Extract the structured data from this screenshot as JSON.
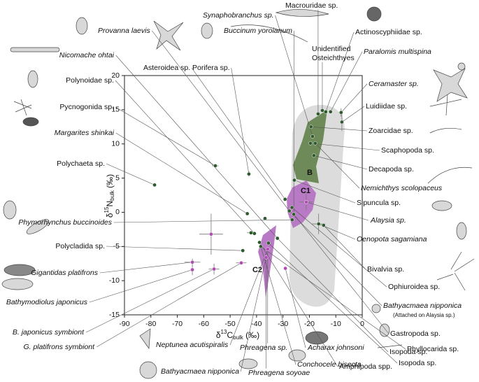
{
  "chart_data": {
    "type": "scatter",
    "x_label": [
      "δ",
      "13",
      "C",
      "bulk",
      " (‰)"
    ],
    "y_label": [
      "δ",
      "15",
      "N",
      "bulk",
      " (‰)"
    ],
    "xlim": [
      -90,
      0
    ],
    "xticks": [
      -90,
      -80,
      -70,
      -60,
      -50,
      -40,
      -30,
      -20,
      -10,
      0
    ],
    "ylim": [
      -15,
      20
    ],
    "yticks": [
      -15,
      -10,
      -5,
      0,
      5,
      10,
      15,
      20
    ],
    "series": [
      {
        "color": "#2e5a2e",
        "x": [
          -78.6,
          -55.6,
          -42.9,
          -43.5,
          -36.8,
          -42.1,
          -40.8,
          -32.1,
          -38.9,
          -38.4,
          -45.2,
          -25.7,
          -29.2,
          -27.6,
          -26.5,
          -16.5,
          -14.6,
          -16.7,
          -15.1,
          -13.8,
          -12.0,
          -8.0,
          -7.7,
          -19.4,
          -18.8,
          -19.6,
          -17.8,
          -18.3,
          -26.6,
          -25.9,
          -35.5
        ],
        "y": [
          4.0,
          6.8,
          5.6,
          -0.2,
          -0.9,
          -3.0,
          -3.1,
          -3.8,
          -4.4,
          -5.0,
          -5.6,
          4.7,
          1.9,
          0.2,
          -1.1,
          -1.7,
          -1.9,
          14.4,
          14.9,
          14.7,
          14.7,
          14.6,
          13.2,
          12.5,
          11.1,
          10.1,
          10.1,
          8.3,
          0.7,
          -0.3,
          -4.5
        ],
        "xerr": [
          null,
          1.2,
          null,
          null,
          null,
          1.5,
          null,
          null,
          null,
          null,
          null,
          null,
          null,
          null,
          null,
          2.5,
          null,
          null,
          null,
          null,
          null,
          0.8,
          null,
          null,
          null,
          null,
          null,
          null,
          null,
          null,
          null
        ],
        "yerr": [
          null,
          0.3,
          0.4,
          null,
          null,
          null,
          null,
          null,
          null,
          null,
          null,
          null,
          null,
          null,
          null,
          1.5,
          null,
          null,
          null,
          null,
          null,
          0.6,
          1.3,
          null,
          null,
          null,
          null,
          null,
          null,
          null,
          null
        ]
      },
      {
        "color": "#b04bb4",
        "x": [
          -21.2,
          -57.2,
          -64.3,
          -64.3,
          -56.1,
          -45.8,
          -35.8,
          -36.4,
          -29.1
        ],
        "y": [
          1.5,
          -3.2,
          -7.3,
          -8.4,
          -8.3,
          -7.4,
          -5.4,
          -6.6,
          -8.2
        ],
        "xerr": [
          2.5,
          4.5,
          3,
          null,
          2,
          2,
          null,
          null,
          null
        ],
        "yerr": [
          1.2,
          3,
          0.5,
          0.8,
          0.8,
          null,
          null,
          null,
          null
        ]
      }
    ],
    "annotations": [
      "B",
      "C1",
      "C2"
    ],
    "labels": [
      {
        "text": "Nicomache ohtai",
        "italic": true
      },
      {
        "text": "Polynoidae sp.",
        "italic": false
      },
      {
        "text": "Pycnogonida sp.",
        "italic": false
      },
      {
        "text": "Margarites shinkai",
        "italic": true
      },
      {
        "text": "Polychaeta sp.",
        "italic": false
      },
      {
        "text": "Phymorhynchus buccinoides",
        "italic": true
      },
      {
        "text": "Polycladida sp.",
        "italic": false
      },
      {
        "text": "Gigantidas platifrons",
        "italic": true
      },
      {
        "text": "Bathymodiolus japonicus",
        "italic": true
      },
      {
        "text": "B. japonicus symbiont",
        "italic": true
      },
      {
        "text": "G. platifrons symbiont",
        "italic": true
      },
      {
        "text": "Provanna laevis",
        "italic": true
      },
      {
        "text": "Asteroidea sp.",
        "italic": false
      },
      {
        "text": "Synaphobranchus sp.",
        "italic": true
      },
      {
        "text": "Buccinum yoroianum",
        "italic": true
      },
      {
        "text": "Porifera sp.",
        "italic": false
      },
      {
        "text": "Macrouridae sp.",
        "italic": false
      },
      {
        "text": "Unidentified",
        "italic": false
      },
      {
        "text": "Osteichthyes",
        "italic": false
      },
      {
        "text": "Actinoscyphiidae sp.",
        "italic": false
      },
      {
        "text": "Paralomis multispina",
        "italic": true
      },
      {
        "text": "Ceramaster sp.",
        "italic": true
      },
      {
        "text": "Luidiidae sp.",
        "italic": false
      },
      {
        "text": "Zoarcidae sp.",
        "italic": false
      },
      {
        "text": "Scaphopoda sp.",
        "italic": false
      },
      {
        "text": "Decapoda sp.",
        "italic": false
      },
      {
        "text": "Nemichthys scolopaceus",
        "italic": true
      },
      {
        "text": "Sipuncula sp.",
        "italic": false
      },
      {
        "text": "Alaysia sp.",
        "italic": true
      },
      {
        "text": "Oenopota sagamiana",
        "italic": true
      },
      {
        "text": "Bivalvia sp.",
        "italic": false
      },
      {
        "text": "Ophiuroidea sp.",
        "italic": false
      },
      {
        "text": "Bathyacmaea nipponica",
        "italic": true
      },
      {
        "text": "(Attached on Alaysia sp.)",
        "italic": false
      },
      {
        "text": "Gastropoda sp.",
        "italic": false
      },
      {
        "text": "Phyllocarida sp.",
        "italic": false
      },
      {
        "text": "Isopoda sp.",
        "italic": false
      },
      {
        "text": "Amphipoda spp.",
        "italic": false
      },
      {
        "text": "Isopoda sp.",
        "italic": false
      },
      {
        "text": "Neptunea acutispiralis",
        "italic": true
      },
      {
        "text": "Bathyacmaea nipponica",
        "italic": true
      },
      {
        "text": "Phreagena sp.",
        "italic": true
      },
      {
        "text": "Phreagena soyoae",
        "italic": true
      },
      {
        "text": "Acharax johnsoni",
        "italic": true
      },
      {
        "text": "Conchocele bisecta",
        "italic": true
      }
    ]
  }
}
